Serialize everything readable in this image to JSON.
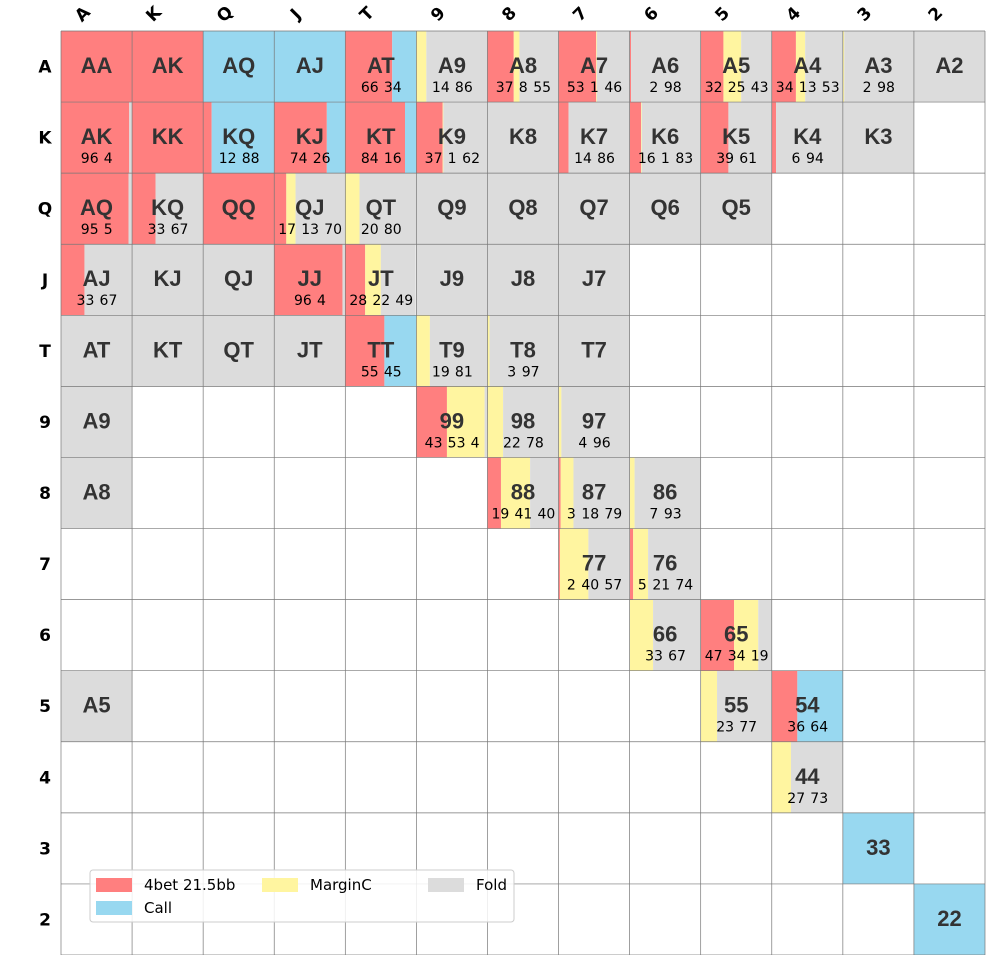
{
  "chart_data": {
    "type": "range-grid",
    "ranks": [
      "A",
      "K",
      "Q",
      "J",
      "T",
      "9",
      "8",
      "7",
      "6",
      "5",
      "4",
      "3",
      "2"
    ],
    "series": [
      {
        "name": "4bet 21.5bb",
        "color": "#ff7f7f"
      },
      {
        "name": "Call",
        "color": "#98d8f0"
      },
      {
        "name": "MarginC",
        "color": "#fff5a0"
      },
      {
        "name": "Fold",
        "color": "#dcdcdc"
      }
    ],
    "legend": "lower left",
    "cells": [
      [
        {
          "label": "AA",
          "values": [
            100,
            0,
            0,
            0
          ]
        },
        {
          "label": "AK",
          "values": [
            100,
            0,
            0,
            0
          ]
        },
        {
          "label": "AQ",
          "values": [
            0,
            100,
            0,
            0
          ]
        },
        {
          "label": "AJ",
          "values": [
            0,
            100,
            0,
            0
          ]
        },
        {
          "label": "AT",
          "values": [
            66,
            34,
            0,
            0
          ]
        },
        {
          "label": "A9",
          "values": [
            0,
            0,
            14,
            86
          ]
        },
        {
          "label": "A8",
          "values": [
            37,
            0,
            8,
            55
          ]
        },
        {
          "label": "A7",
          "values": [
            53,
            0,
            1,
            46
          ]
        },
        {
          "label": "A6",
          "values": [
            2,
            0,
            0,
            98
          ]
        },
        {
          "label": "A5",
          "values": [
            32,
            0,
            25,
            43
          ]
        },
        {
          "label": "A4",
          "values": [
            34,
            0,
            13,
            53
          ]
        },
        {
          "label": "A3",
          "values": [
            0,
            0,
            2,
            98
          ]
        },
        {
          "label": "A2",
          "values": [
            0,
            0,
            0,
            100
          ]
        }
      ],
      [
        {
          "label": "AK",
          "values": [
            96,
            0,
            0,
            4
          ]
        },
        {
          "label": "KK",
          "values": [
            100,
            0,
            0,
            0
          ]
        },
        {
          "label": "KQ",
          "values": [
            12,
            88,
            0,
            0
          ]
        },
        {
          "label": "KJ",
          "values": [
            74,
            26,
            0,
            0
          ]
        },
        {
          "label": "KT",
          "values": [
            84,
            16,
            0,
            0
          ]
        },
        {
          "label": "K9",
          "values": [
            37,
            0,
            1,
            62
          ]
        },
        {
          "label": "K8",
          "values": [
            0,
            0,
            0,
            100
          ]
        },
        {
          "label": "K7",
          "values": [
            14,
            0,
            0,
            86
          ]
        },
        {
          "label": "K6",
          "values": [
            16,
            0,
            1,
            83
          ]
        },
        {
          "label": "K5",
          "values": [
            39,
            0,
            0,
            61
          ]
        },
        {
          "label": "K4",
          "values": [
            6,
            0,
            0,
            94
          ]
        },
        {
          "label": "K3",
          "values": [
            0,
            0,
            0,
            100
          ]
        },
        null
      ],
      [
        {
          "label": "AQ",
          "values": [
            95,
            0,
            0,
            5
          ]
        },
        {
          "label": "KQ",
          "values": [
            33,
            0,
            0,
            67
          ]
        },
        {
          "label": "QQ",
          "values": [
            100,
            0,
            0,
            0
          ]
        },
        {
          "label": "QJ",
          "values": [
            17,
            0,
            13,
            70
          ]
        },
        {
          "label": "QT",
          "values": [
            0,
            0,
            20,
            80
          ]
        },
        {
          "label": "Q9",
          "values": [
            0,
            0,
            0,
            100
          ]
        },
        {
          "label": "Q8",
          "values": [
            0,
            0,
            0,
            100
          ]
        },
        {
          "label": "Q7",
          "values": [
            0,
            0,
            0,
            100
          ]
        },
        {
          "label": "Q6",
          "values": [
            0,
            0,
            0,
            100
          ]
        },
        {
          "label": "Q5",
          "values": [
            0,
            0,
            0,
            100
          ]
        },
        null,
        null,
        null
      ],
      [
        {
          "label": "AJ",
          "values": [
            33,
            0,
            0,
            67
          ]
        },
        {
          "label": "KJ",
          "values": [
            0,
            0,
            0,
            100
          ]
        },
        {
          "label": "QJ",
          "values": [
            0,
            0,
            0,
            100
          ]
        },
        {
          "label": "JJ",
          "values": [
            96,
            0,
            0,
            4
          ]
        },
        {
          "label": "JT",
          "values": [
            28,
            0,
            22,
            49
          ]
        },
        {
          "label": "J9",
          "values": [
            0,
            0,
            0,
            100
          ]
        },
        {
          "label": "J8",
          "values": [
            0,
            0,
            0,
            100
          ]
        },
        {
          "label": "J7",
          "values": [
            0,
            0,
            0,
            100
          ]
        },
        null,
        null,
        null,
        null,
        null
      ],
      [
        {
          "label": "AT",
          "values": [
            0,
            0,
            0,
            100
          ]
        },
        {
          "label": "KT",
          "values": [
            0,
            0,
            0,
            100
          ]
        },
        {
          "label": "QT",
          "values": [
            0,
            0,
            0,
            100
          ]
        },
        {
          "label": "JT",
          "values": [
            0,
            0,
            0,
            100
          ]
        },
        {
          "label": "TT",
          "values": [
            55,
            45,
            0,
            0
          ]
        },
        {
          "label": "T9",
          "values": [
            0,
            0,
            19,
            81
          ]
        },
        {
          "label": "T8",
          "values": [
            0,
            0,
            3,
            97
          ]
        },
        {
          "label": "T7",
          "values": [
            0,
            0,
            0,
            100
          ]
        },
        null,
        null,
        null,
        null,
        null
      ],
      [
        {
          "label": "A9",
          "values": [
            0,
            0,
            0,
            100
          ]
        },
        null,
        null,
        null,
        null,
        {
          "label": "99",
          "values": [
            43,
            0,
            53,
            4
          ]
        },
        {
          "label": "98",
          "values": [
            0,
            0,
            22,
            78
          ]
        },
        {
          "label": "97",
          "values": [
            0,
            0,
            4,
            96
          ]
        },
        null,
        null,
        null,
        null,
        null
      ],
      [
        {
          "label": "A8",
          "values": [
            0,
            0,
            0,
            100
          ]
        },
        null,
        null,
        null,
        null,
        null,
        {
          "label": "88",
          "values": [
            19,
            0,
            41,
            40
          ]
        },
        {
          "label": "87",
          "values": [
            3,
            0,
            18,
            79
          ]
        },
        {
          "label": "86",
          "values": [
            0,
            0,
            7,
            93
          ]
        },
        null,
        null,
        null,
        null
      ],
      [
        null,
        null,
        null,
        null,
        null,
        null,
        null,
        {
          "label": "77",
          "values": [
            2,
            0,
            40,
            57
          ]
        },
        {
          "label": "76",
          "values": [
            5,
            0,
            21,
            74
          ]
        },
        null,
        null,
        null,
        null
      ],
      [
        null,
        null,
        null,
        null,
        null,
        null,
        null,
        null,
        {
          "label": "66",
          "values": [
            0,
            0,
            33,
            67
          ]
        },
        {
          "label": "65",
          "values": [
            47,
            0,
            34,
            19
          ]
        },
        null,
        null,
        null
      ],
      [
        {
          "label": "A5",
          "values": [
            0,
            0,
            0,
            100
          ]
        },
        null,
        null,
        null,
        null,
        null,
        null,
        null,
        null,
        {
          "label": "55",
          "values": [
            0,
            0,
            23,
            77
          ]
        },
        {
          "label": "54",
          "values": [
            36,
            64,
            0,
            0
          ]
        },
        null,
        null
      ],
      [
        null,
        null,
        null,
        null,
        null,
        null,
        null,
        null,
        null,
        null,
        {
          "label": "44",
          "values": [
            0,
            0,
            27,
            73
          ]
        },
        null,
        null
      ],
      [
        null,
        null,
        null,
        null,
        null,
        null,
        null,
        null,
        null,
        null,
        null,
        {
          "label": "33",
          "values": [
            0,
            100,
            0,
            0
          ]
        },
        null
      ],
      [
        null,
        null,
        null,
        null,
        null,
        null,
        null,
        null,
        null,
        null,
        null,
        null,
        {
          "label": "22",
          "values": [
            0,
            100,
            0,
            0
          ]
        }
      ]
    ]
  }
}
